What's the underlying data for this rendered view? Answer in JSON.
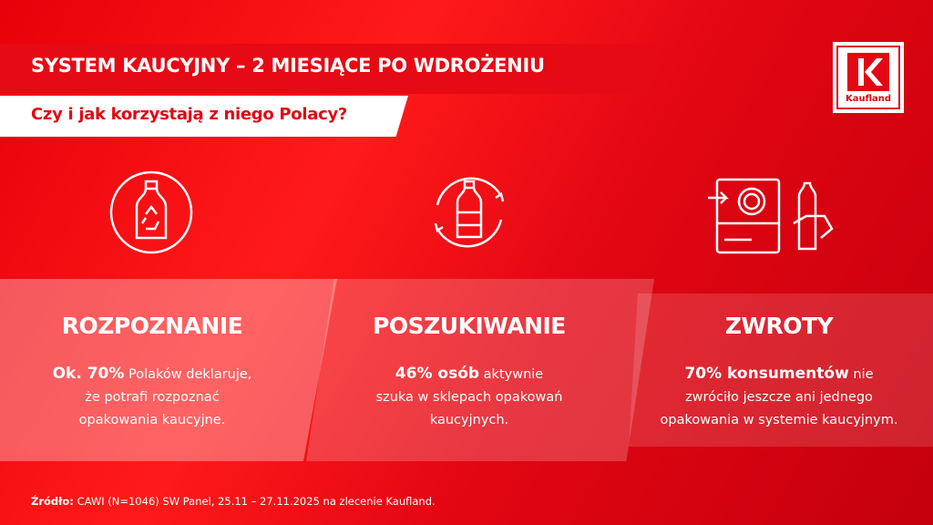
{
  "header": {
    "title": "SYSTEM KAUCYJNY – 2 MIESIĄCE PO WDROŻENIU",
    "subtitle": "Czy i jak korzystają z niego Polacy?"
  },
  "logo": {
    "text": "Kaufland",
    "color": "#e30613"
  },
  "columns": [
    {
      "icon": "bottle-recycle-icon",
      "heading": "ROZPOZNANIE",
      "bold": "Ok. 70%",
      "text1": " Polaków deklaruje,",
      "text2": "że potrafi rozpoznać",
      "text3": "opakowania kaucyjne."
    },
    {
      "icon": "bottle-cycle-arrows-icon",
      "heading": "POSZUKIWANIE",
      "bold": "46% osób",
      "text1": " aktywnie",
      "text2": "szuka w sklepach opakowań",
      "text3": "kaucyjnych."
    },
    {
      "icon": "return-machine-hand-bottle-icon",
      "heading": "ZWROTY",
      "bold": "70% konsumentów",
      "text1": " nie",
      "text2": "zwróciło jeszcze ani jednego",
      "text3": "opakowania w systemie kaucyjnym."
    }
  ],
  "source": {
    "label": "Źródło:",
    "text": " CAWI (N=1046) SW Panel, 25.11 – 27.11.2025 na zlecenie Kaufland."
  }
}
